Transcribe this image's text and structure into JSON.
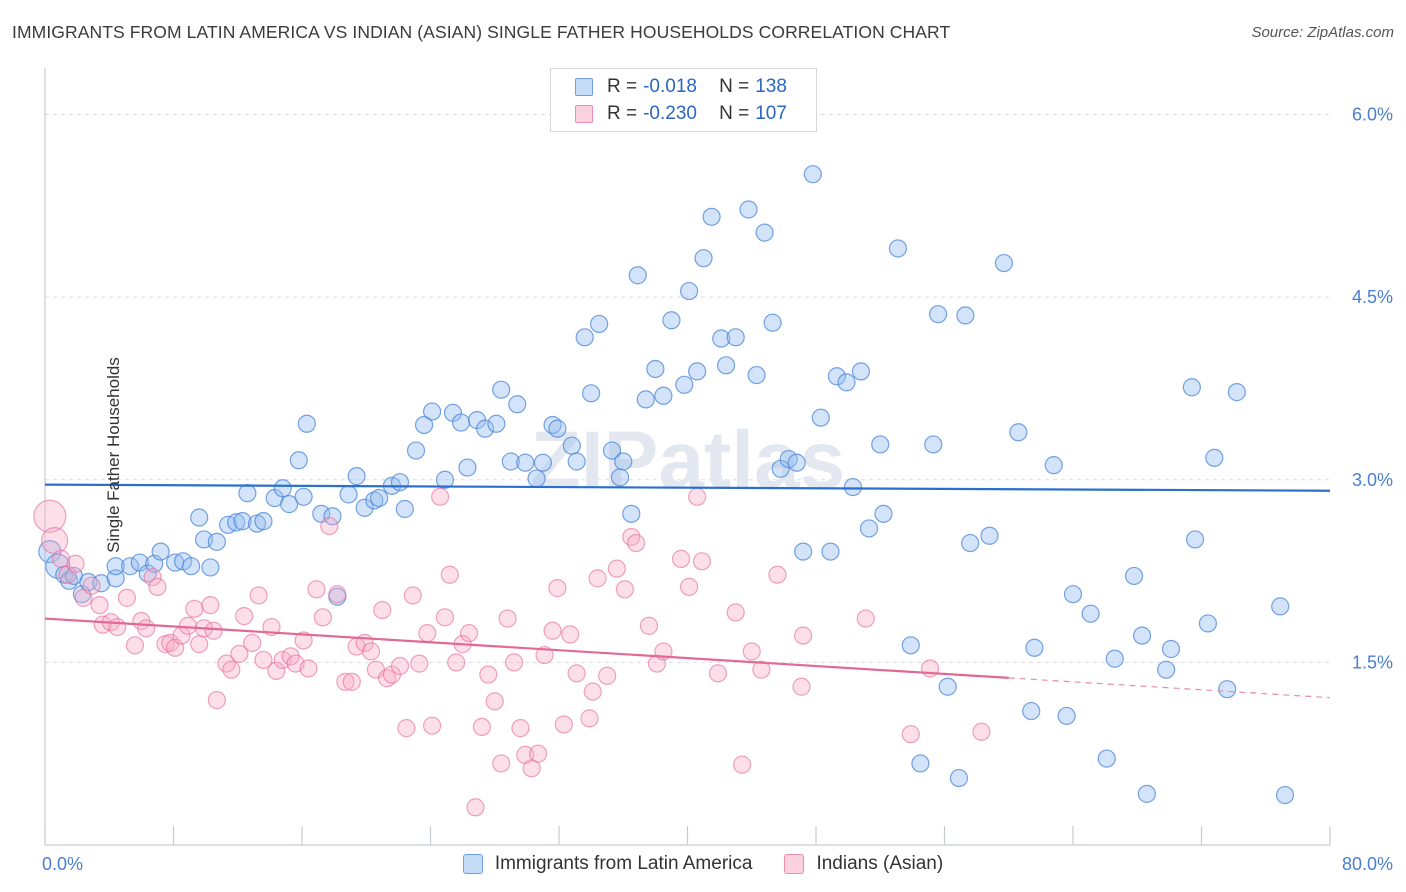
{
  "title": "IMMIGRANTS FROM LATIN AMERICA VS INDIAN (ASIAN) SINGLE FATHER HOUSEHOLDS CORRELATION CHART",
  "source": "Source: ZipAtlas.com",
  "watermark": "ZIPatlas",
  "legend_stats": [
    {
      "r_label": "R =",
      "r_value": "-0.018",
      "n_label": "N =",
      "n_value": "138",
      "color": "#6d9eeb"
    },
    {
      "r_label": "R =",
      "r_value": "-0.230",
      "n_label": "N =",
      "n_value": "107",
      "color": "#f08cb0"
    }
  ],
  "colors": {
    "blue": "#4a86d8",
    "blue_fill": "#aac8f0",
    "pink": "#e8729d",
    "pink_fill": "#f6b7cc",
    "tick_label": "#4a7fcf"
  },
  "chart_data": {
    "type": "scatter",
    "title": "IMMIGRANTS FROM LATIN AMERICA VS INDIAN (ASIAN) SINGLE FATHER HOUSEHOLDS CORRELATION CHART",
    "xlabel": "",
    "ylabel": "Single Father Households",
    "xlim": [
      0,
      80
    ],
    "ylim": [
      0,
      6.3
    ],
    "x_tick_labels": [
      "0.0%",
      "80.0%"
    ],
    "y_ticks": [
      1.5,
      3.0,
      4.5,
      6.0
    ],
    "y_tick_labels": [
      "1.5%",
      "3.0%",
      "4.5%",
      "6.0%"
    ],
    "grid": true,
    "legend_position": "bottom",
    "series": [
      {
        "name": "Immigrants from Latin America",
        "color": "#4a86d8",
        "trend": {
          "x": [
            0,
            80
          ],
          "y": [
            2.96,
            2.91
          ]
        },
        "points": [
          [
            0.3,
            2.41
          ],
          [
            0.8,
            2.29
          ],
          [
            1.2,
            2.22
          ],
          [
            1.5,
            2.17
          ],
          [
            1.8,
            2.21
          ],
          [
            2.3,
            2.06
          ],
          [
            2.7,
            2.16
          ],
          [
            3.5,
            2.15
          ],
          [
            4.4,
            2.19
          ],
          [
            4.4,
            2.29
          ],
          [
            5.3,
            2.29
          ],
          [
            5.9,
            2.32
          ],
          [
            6.4,
            2.23
          ],
          [
            6.8,
            2.31
          ],
          [
            7.2,
            2.41
          ],
          [
            8.1,
            2.32
          ],
          [
            8.6,
            2.33
          ],
          [
            9.1,
            2.29
          ],
          [
            10.3,
            2.28
          ],
          [
            9.6,
            2.69
          ],
          [
            9.9,
            2.51
          ],
          [
            10.7,
            2.49
          ],
          [
            11.4,
            2.63
          ],
          [
            11.9,
            2.65
          ],
          [
            12.3,
            2.66
          ],
          [
            13.2,
            2.64
          ],
          [
            13.6,
            2.66
          ],
          [
            12.6,
            2.89
          ],
          [
            14.3,
            2.85
          ],
          [
            14.8,
            2.93
          ],
          [
            15.2,
            2.8
          ],
          [
            16.1,
            2.86
          ],
          [
            16.3,
            3.46
          ],
          [
            15.8,
            3.16
          ],
          [
            17.2,
            2.72
          ],
          [
            17.9,
            2.7
          ],
          [
            18.2,
            2.04
          ],
          [
            18.9,
            2.88
          ],
          [
            19.4,
            3.03
          ],
          [
            19.9,
            2.77
          ],
          [
            20.5,
            2.83
          ],
          [
            20.8,
            2.85
          ],
          [
            21.6,
            2.95
          ],
          [
            22.1,
            2.98
          ],
          [
            22.4,
            2.76
          ],
          [
            23.1,
            3.24
          ],
          [
            23.6,
            3.45
          ],
          [
            24.1,
            3.56
          ],
          [
            24.9,
            3.0
          ],
          [
            25.4,
            3.55
          ],
          [
            25.9,
            3.47
          ],
          [
            26.3,
            3.1
          ],
          [
            26.9,
            3.49
          ],
          [
            27.4,
            3.42
          ],
          [
            28.1,
            3.46
          ],
          [
            28.4,
            3.74
          ],
          [
            29.0,
            3.15
          ],
          [
            29.4,
            3.62
          ],
          [
            29.9,
            3.14
          ],
          [
            30.6,
            3.01
          ],
          [
            31.0,
            3.14
          ],
          [
            31.6,
            3.45
          ],
          [
            31.9,
            3.42
          ],
          [
            32.8,
            3.28
          ],
          [
            33.1,
            3.15
          ],
          [
            33.6,
            4.17
          ],
          [
            34.0,
            3.71
          ],
          [
            34.5,
            4.28
          ],
          [
            35.3,
            3.24
          ],
          [
            35.8,
            3.02
          ],
          [
            36.0,
            3.15
          ],
          [
            36.5,
            2.72
          ],
          [
            36.9,
            4.68
          ],
          [
            37.4,
            3.66
          ],
          [
            38.0,
            3.91
          ],
          [
            38.5,
            3.69
          ],
          [
            39.0,
            4.31
          ],
          [
            39.8,
            3.78
          ],
          [
            40.1,
            4.55
          ],
          [
            40.6,
            3.89
          ],
          [
            41.0,
            4.82
          ],
          [
            41.5,
            5.16
          ],
          [
            42.1,
            4.16
          ],
          [
            42.4,
            3.94
          ],
          [
            43.0,
            4.17
          ],
          [
            43.8,
            5.22
          ],
          [
            44.3,
            3.86
          ],
          [
            44.8,
            5.03
          ],
          [
            45.3,
            4.29
          ],
          [
            45.8,
            3.09
          ],
          [
            46.3,
            3.17
          ],
          [
            46.8,
            3.14
          ],
          [
            47.2,
            2.41
          ],
          [
            47.8,
            5.51
          ],
          [
            48.3,
            3.51
          ],
          [
            48.9,
            2.41
          ],
          [
            49.3,
            3.85
          ],
          [
            49.9,
            3.8
          ],
          [
            50.3,
            2.94
          ],
          [
            50.8,
            3.89
          ],
          [
            51.3,
            2.6
          ],
          [
            52.0,
            3.29
          ],
          [
            52.2,
            2.72
          ],
          [
            53.1,
            4.9
          ],
          [
            53.9,
            1.64
          ],
          [
            54.5,
            0.67
          ],
          [
            55.3,
            3.29
          ],
          [
            55.6,
            4.36
          ],
          [
            56.2,
            1.3
          ],
          [
            56.9,
            0.55
          ],
          [
            57.3,
            4.35
          ],
          [
            57.6,
            2.48
          ],
          [
            58.8,
            2.54
          ],
          [
            59.7,
            4.78
          ],
          [
            60.6,
            3.39
          ],
          [
            61.4,
            1.1
          ],
          [
            61.6,
            1.62
          ],
          [
            62.8,
            3.12
          ],
          [
            63.6,
            1.06
          ],
          [
            64.0,
            2.06
          ],
          [
            65.1,
            1.9
          ],
          [
            66.1,
            0.71
          ],
          [
            66.6,
            1.53
          ],
          [
            67.8,
            2.21
          ],
          [
            68.3,
            1.72
          ],
          [
            68.6,
            0.42
          ],
          [
            69.8,
            1.44
          ],
          [
            70.1,
            1.61
          ],
          [
            71.4,
            3.76
          ],
          [
            71.6,
            2.51
          ],
          [
            72.4,
            1.82
          ],
          [
            72.8,
            3.18
          ],
          [
            73.6,
            1.28
          ],
          [
            74.2,
            3.72
          ],
          [
            76.9,
            1.96
          ],
          [
            77.2,
            0.41
          ]
        ]
      },
      {
        "name": "Indians (Asian)",
        "color": "#e8729d",
        "trend": {
          "x": [
            0,
            80
          ],
          "y": [
            1.86,
            1.21
          ]
        },
        "trend_solid_to_x": 60,
        "points": [
          [
            0.3,
            2.7
          ],
          [
            0.6,
            2.5
          ],
          [
            1.0,
            2.35
          ],
          [
            1.4,
            2.22
          ],
          [
            1.9,
            2.31
          ],
          [
            2.4,
            2.03
          ],
          [
            2.9,
            2.13
          ],
          [
            3.4,
            1.97
          ],
          [
            3.6,
            1.81
          ],
          [
            4.1,
            1.83
          ],
          [
            4.5,
            1.79
          ],
          [
            5.1,
            2.03
          ],
          [
            5.6,
            1.64
          ],
          [
            6.0,
            1.84
          ],
          [
            6.3,
            1.78
          ],
          [
            6.7,
            2.2
          ],
          [
            7.0,
            2.12
          ],
          [
            7.5,
            1.65
          ],
          [
            7.8,
            1.66
          ],
          [
            8.1,
            1.62
          ],
          [
            8.5,
            1.72
          ],
          [
            8.9,
            1.8
          ],
          [
            9.3,
            1.94
          ],
          [
            9.6,
            1.65
          ],
          [
            9.9,
            1.78
          ],
          [
            10.3,
            1.97
          ],
          [
            10.5,
            1.76
          ],
          [
            10.7,
            1.19
          ],
          [
            11.3,
            1.49
          ],
          [
            11.6,
            1.44
          ],
          [
            12.1,
            1.57
          ],
          [
            12.4,
            1.88
          ],
          [
            12.9,
            1.66
          ],
          [
            13.3,
            2.05
          ],
          [
            13.6,
            1.52
          ],
          [
            14.1,
            1.79
          ],
          [
            14.4,
            1.43
          ],
          [
            14.8,
            1.52
          ],
          [
            15.3,
            1.55
          ],
          [
            15.6,
            1.49
          ],
          [
            16.1,
            1.68
          ],
          [
            16.4,
            1.45
          ],
          [
            16.9,
            2.1
          ],
          [
            17.3,
            1.87
          ],
          [
            17.7,
            2.62
          ],
          [
            18.2,
            2.06
          ],
          [
            18.7,
            1.34
          ],
          [
            19.1,
            1.34
          ],
          [
            19.4,
            1.63
          ],
          [
            19.9,
            1.66
          ],
          [
            20.3,
            1.59
          ],
          [
            20.6,
            1.44
          ],
          [
            21.0,
            1.93
          ],
          [
            21.3,
            1.37
          ],
          [
            21.6,
            1.4
          ],
          [
            22.1,
            1.47
          ],
          [
            22.5,
            0.96
          ],
          [
            22.9,
            2.05
          ],
          [
            23.3,
            1.49
          ],
          [
            23.8,
            1.74
          ],
          [
            24.1,
            0.98
          ],
          [
            24.6,
            2.86
          ],
          [
            24.9,
            1.87
          ],
          [
            25.2,
            2.22
          ],
          [
            25.6,
            1.5
          ],
          [
            26.0,
            1.65
          ],
          [
            26.4,
            1.74
          ],
          [
            26.8,
            0.31
          ],
          [
            27.2,
            0.97
          ],
          [
            27.6,
            1.4
          ],
          [
            28.0,
            1.18
          ],
          [
            28.4,
            0.67
          ],
          [
            28.8,
            1.86
          ],
          [
            29.2,
            1.5
          ],
          [
            29.6,
            0.96
          ],
          [
            29.9,
            0.74
          ],
          [
            30.3,
            0.63
          ],
          [
            30.7,
            0.75
          ],
          [
            31.1,
            1.56
          ],
          [
            31.6,
            1.76
          ],
          [
            31.9,
            2.11
          ],
          [
            32.3,
            0.99
          ],
          [
            32.7,
            1.73
          ],
          [
            33.1,
            1.41
          ],
          [
            33.9,
            1.04
          ],
          [
            34.1,
            1.26
          ],
          [
            34.4,
            2.19
          ],
          [
            35.0,
            1.39
          ],
          [
            35.6,
            2.27
          ],
          [
            36.1,
            2.1
          ],
          [
            36.5,
            2.53
          ],
          [
            36.8,
            2.48
          ],
          [
            37.6,
            1.8
          ],
          [
            38.1,
            1.49
          ],
          [
            38.5,
            1.59
          ],
          [
            39.6,
            2.35
          ],
          [
            40.1,
            2.12
          ],
          [
            40.6,
            2.86
          ],
          [
            40.9,
            2.33
          ],
          [
            41.9,
            1.41
          ],
          [
            43.0,
            1.91
          ],
          [
            43.4,
            0.66
          ],
          [
            44.6,
            1.44
          ],
          [
            45.6,
            2.22
          ],
          [
            47.1,
            1.3
          ],
          [
            51.1,
            1.86
          ],
          [
            53.9,
            0.91
          ],
          [
            55.1,
            1.45
          ],
          [
            58.3,
            0.93
          ],
          [
            44.0,
            1.59
          ],
          [
            47.2,
            1.72
          ]
        ]
      }
    ]
  }
}
